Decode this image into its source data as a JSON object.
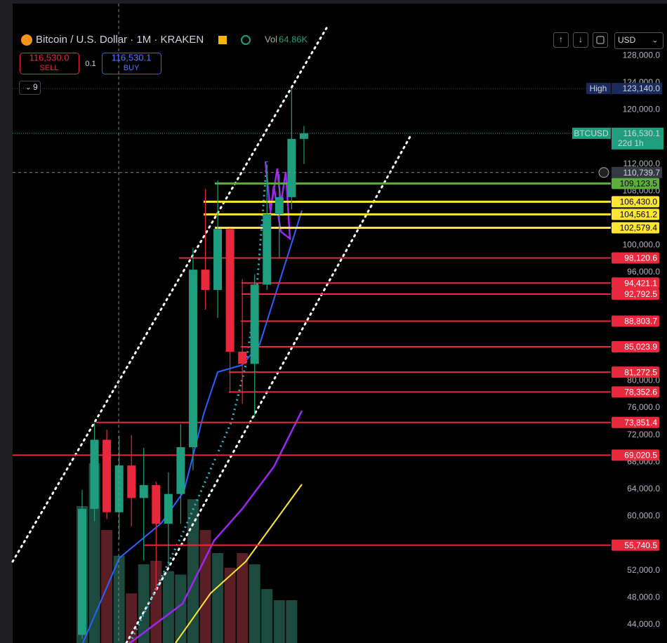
{
  "header": {
    "title": "Bitcoin / U.S. Dollar · 1M · KRAKEN",
    "vol_label": "Vol",
    "vol_value": "64.86K",
    "sell_price": "116,530.0",
    "sell_label": "SELL",
    "spread": "0.1",
    "buy_price": "116,530.1",
    "buy_label": "BUY",
    "indicators_count": "9",
    "currency": "USD"
  },
  "chart_data": {
    "type": "candlestick",
    "ylim": [
      41300,
      136200
    ],
    "yticks": [
      {
        "value": 128000,
        "label": "128,000.0"
      },
      {
        "value": 124000,
        "label": "124,000.0"
      },
      {
        "value": 120000,
        "label": "120,000.0"
      },
      {
        "value": 112000,
        "label": "112,000.0"
      },
      {
        "value": 108000,
        "label": "108,000.0"
      },
      {
        "value": 100000,
        "label": "100,000.0"
      },
      {
        "value": 96000,
        "label": "96,000.0"
      },
      {
        "value": 80000,
        "label": "80,000.0"
      },
      {
        "value": 76000,
        "label": "76,000.0"
      },
      {
        "value": 72000,
        "label": "72,000.0"
      },
      {
        "value": 68000,
        "label": "68,000.0"
      },
      {
        "value": 64000,
        "label": "64,000.0"
      },
      {
        "value": 60000,
        "label": "60,000.0"
      },
      {
        "value": 52000,
        "label": "52,000.0"
      },
      {
        "value": 48000,
        "label": "48,000.0"
      },
      {
        "value": 44000,
        "label": "44,000.0"
      }
    ],
    "open": [
      42500,
      61100,
      71300,
      60600,
      67500,
      62700,
      64600,
      58900,
      63300,
      70200,
      96400,
      93400,
      102400,
      84300,
      82500,
      94200,
      104600,
      107100,
      115700
    ],
    "high": [
      63900,
      73800,
      72800,
      71900,
      72000,
      70100,
      65100,
      66500,
      73600,
      99600,
      108300,
      109600,
      102500,
      95000,
      95700,
      111900,
      110500,
      123140,
      117600
    ],
    "low": [
      41900,
      59300,
      59600,
      56600,
      58500,
      53500,
      49000,
      52500,
      58900,
      66800,
      90500,
      89300,
      78200,
      76600,
      74600,
      93400,
      98200,
      105300,
      112000
    ],
    "close": [
      61100,
      71300,
      60600,
      67500,
      62700,
      64600,
      58900,
      63300,
      70200,
      96400,
      93400,
      102400,
      84300,
      82500,
      94200,
      104600,
      107100,
      115700,
      116530.1
    ],
    "up_color": "#1f9e7f",
    "down_color": "#e8283c",
    "volume": [
      160,
      210,
      132,
      102,
      58,
      92,
      96,
      84,
      80,
      168,
      132,
      105,
      88,
      105,
      92,
      63,
      50,
      50,
      null
    ],
    "volume_up_color": "#1c4a3f",
    "volume_down_color": "#5a1f24",
    "levels": [
      {
        "value": 109123.5,
        "label": "109,123.5",
        "color": "#5cae3c"
      },
      {
        "value": 106430.0,
        "label": "106,430.0",
        "color": "#ffe633"
      },
      {
        "value": 104561.2,
        "label": "104,561.2",
        "color": "#ffe633"
      },
      {
        "value": 102579.4,
        "label": "102,579.4",
        "color": "#ffe633"
      },
      {
        "value": 98120.6,
        "label": "98,120.6",
        "color": "#e8283c"
      },
      {
        "value": 94421.1,
        "label": "94,421.1",
        "color": "#e8283c"
      },
      {
        "value": 92792.5,
        "label": "92,792.5",
        "color": "#e8283c"
      },
      {
        "value": 88803.7,
        "label": "88,803.7",
        "color": "#e8283c"
      },
      {
        "value": 85023.9,
        "label": "85,023.9",
        "color": "#e8283c"
      },
      {
        "value": 81272.5,
        "label": "81,272.5",
        "color": "#e8283c"
      },
      {
        "value": 78352.6,
        "label": "78,352.6",
        "color": "#e8283c"
      },
      {
        "value": 73851.4,
        "label": "73,851.4",
        "color": "#e8283c"
      },
      {
        "value": 69020.5,
        "label": "69,020.5",
        "color": "#e8283c"
      },
      {
        "value": 55740.5,
        "label": "55,740.5",
        "color": "#e8283c"
      }
    ],
    "high_marker": {
      "name": "High",
      "value": 123140,
      "label": "123,140.0"
    },
    "last_price": {
      "name": "BTCUSD",
      "value": 116530.1,
      "label": "116,530.1",
      "countdown": "22d 1h"
    },
    "crosshair": {
      "value": 110739.7,
      "label": "110,739.7"
    }
  }
}
